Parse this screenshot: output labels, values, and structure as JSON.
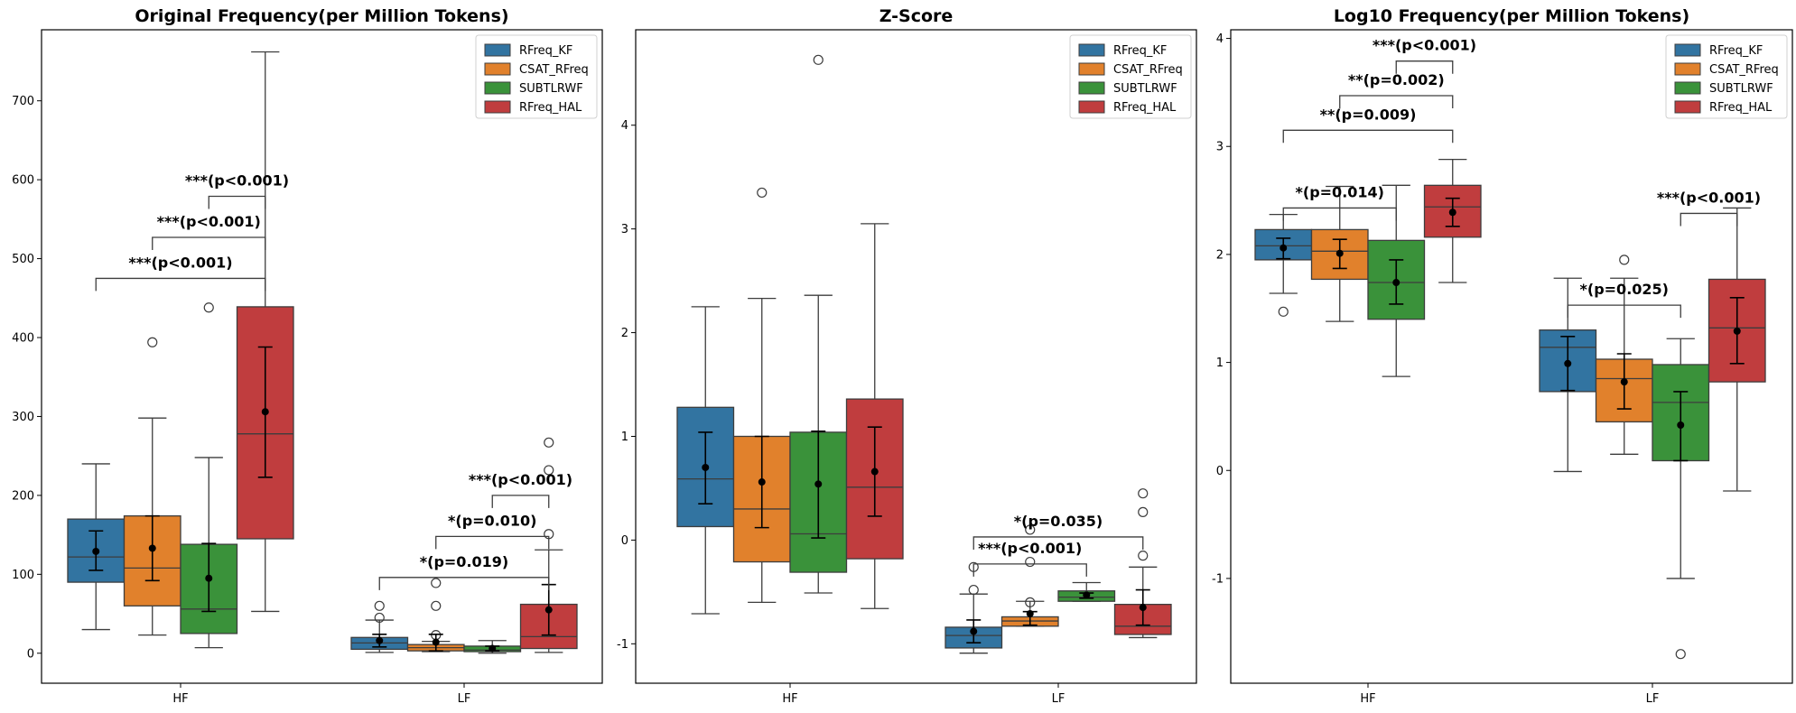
{
  "figure": {
    "colors": {
      "RFreq_KF": "#3274a1",
      "CSAT_RFreq": "#e1812c",
      "SUBTLRWF": "#3a923a",
      "RFreq_HAL": "#c03d3e"
    }
  },
  "chart_data": [
    {
      "type": "box",
      "title": "Original Frequency(per Million Tokens)",
      "xlabel": "",
      "ylabel": "",
      "categories": [
        "HF",
        "LF"
      ],
      "legend": {
        "entries": [
          "RFreq_KF",
          "CSAT_RFreq",
          "SUBTLRWF",
          "RFreq_HAL"
        ],
        "position": "top-right"
      },
      "ylim": [
        -38,
        790
      ],
      "yticks": [
        0,
        100,
        200,
        300,
        400,
        500,
        600,
        700
      ],
      "ytick_labels": [
        "0",
        "100",
        "200",
        "300",
        "400",
        "500",
        "600",
        "700"
      ],
      "grid": false,
      "series": [
        {
          "name": "RFreq_KF",
          "boxes": [
            {
              "category": "HF",
              "whislo": 30,
              "q1": 90,
              "med": 122,
              "q3": 170,
              "whishi": 240,
              "mean": 129,
              "ci": [
                105,
                155
              ],
              "fliers": []
            },
            {
              "category": "LF",
              "whislo": 1,
              "q1": 5,
              "med": 13,
              "q3": 20,
              "whishi": 42,
              "mean": 16,
              "ci": [
                8,
                24
              ],
              "fliers": [
                45,
                60
              ]
            }
          ]
        },
        {
          "name": "CSAT_RFreq",
          "boxes": [
            {
              "category": "HF",
              "whislo": 23,
              "q1": 60,
              "med": 108,
              "q3": 174,
              "whishi": 298,
              "mean": 133,
              "ci": [
                92,
                174
              ],
              "fliers": [
                394
              ]
            },
            {
              "category": "LF",
              "whislo": 2,
              "q1": 3,
              "med": 7,
              "q3": 11,
              "whishi": 15,
              "mean": 14,
              "ci": [
                3,
                24
              ],
              "fliers": [
                23,
                60,
                89
              ]
            }
          ]
        },
        {
          "name": "SUBTLRWF",
          "boxes": [
            {
              "category": "HF",
              "whislo": 7,
              "q1": 25,
              "med": 56,
              "q3": 138,
              "whishi": 248,
              "mean": 95,
              "ci": [
                53,
                139
              ],
              "fliers": [
                438
              ]
            },
            {
              "category": "LF",
              "whislo": 0,
              "q1": 2,
              "med": 4,
              "q3": 9,
              "whishi": 16,
              "mean": 6,
              "ci": [
                3,
                9
              ],
              "fliers": []
            }
          ]
        },
        {
          "name": "RFreq_HAL",
          "boxes": [
            {
              "category": "HF",
              "whislo": 53,
              "q1": 145,
              "med": 278,
              "q3": 439,
              "whishi": 762,
              "mean": 306,
              "ci": [
                223,
                388
              ],
              "fliers": []
            },
            {
              "category": "LF",
              "whislo": 1,
              "q1": 6,
              "med": 21,
              "q3": 62,
              "whishi": 131,
              "mean": 55,
              "ci": [
                23,
                87
              ],
              "fliers": [
                151,
                232,
                267
              ]
            }
          ]
        }
      ],
      "annotations": [
        {
          "text": "***(p<0.001)",
          "category": "HF",
          "from": "RFreq_KF",
          "to": "RFreq_HAL",
          "y": 475
        },
        {
          "text": "***(p<0.001)",
          "category": "HF",
          "from": "CSAT_RFreq",
          "to": "RFreq_HAL",
          "y": 527
        },
        {
          "text": "***(p<0.001)",
          "category": "HF",
          "from": "SUBTLRWF",
          "to": "RFreq_HAL",
          "y": 579
        },
        {
          "text": "*(p=0.019)",
          "category": "LF",
          "from": "RFreq_KF",
          "to": "RFreq_HAL",
          "y": 96
        },
        {
          "text": "*(p=0.010)",
          "category": "LF",
          "from": "CSAT_RFreq",
          "to": "RFreq_HAL",
          "y": 148
        },
        {
          "text": "***(p<0.001)",
          "category": "LF",
          "from": "SUBTLRWF",
          "to": "RFreq_HAL",
          "y": 200
        }
      ]
    },
    {
      "type": "box",
      "title": "Z-Score",
      "xlabel": "",
      "ylabel": "",
      "categories": [
        "HF",
        "LF"
      ],
      "legend": {
        "entries": [
          "RFreq_KF",
          "CSAT_RFreq",
          "SUBTLRWF",
          "RFreq_HAL"
        ],
        "position": "top-right"
      },
      "ylim": [
        -1.38,
        4.92
      ],
      "yticks": [
        -1,
        0,
        1,
        2,
        3,
        4
      ],
      "ytick_labels": [
        "-1",
        "0",
        "1",
        "2",
        "3",
        "4"
      ],
      "grid": false,
      "series": [
        {
          "name": "RFreq_KF",
          "boxes": [
            {
              "category": "HF",
              "whislo": -0.71,
              "q1": 0.13,
              "med": 0.59,
              "q3": 1.28,
              "whishi": 2.25,
              "mean": 0.7,
              "ci": [
                0.35,
                1.04
              ],
              "fliers": []
            },
            {
              "category": "LF",
              "whislo": -1.09,
              "q1": -1.04,
              "med": -0.92,
              "q3": -0.84,
              "whishi": -0.52,
              "mean": -0.88,
              "ci": [
                -0.99,
                -0.77
              ],
              "fliers": [
                -0.48,
                -0.26
              ]
            }
          ]
        },
        {
          "name": "CSAT_RFreq",
          "boxes": [
            {
              "category": "HF",
              "whislo": -0.6,
              "q1": -0.21,
              "med": 0.3,
              "q3": 1.0,
              "whishi": 2.33,
              "mean": 0.56,
              "ci": [
                0.12,
                1.0
              ],
              "fliers": [
                3.35
              ]
            },
            {
              "category": "LF",
              "whislo": -0.83,
              "q1": -0.83,
              "med": -0.78,
              "q3": -0.74,
              "whishi": -0.59,
              "mean": -0.71,
              "ci": [
                -0.82,
                -0.69
              ],
              "fliers": [
                -0.6,
                -0.21,
                0.1
              ]
            }
          ]
        },
        {
          "name": "SUBTLRWF",
          "boxes": [
            {
              "category": "HF",
              "whislo": -0.51,
              "q1": -0.31,
              "med": 0.06,
              "q3": 1.04,
              "whishi": 2.36,
              "mean": 0.54,
              "ci": [
                0.02,
                1.05
              ],
              "fliers": [
                4.63
              ]
            },
            {
              "category": "LF",
              "whislo": -0.59,
              "q1": -0.59,
              "med": -0.55,
              "q3": -0.49,
              "whishi": -0.41,
              "mean": -0.53,
              "ci": [
                -0.56,
                -0.51
              ],
              "fliers": []
            }
          ]
        },
        {
          "name": "RFreq_HAL",
          "boxes": [
            {
              "category": "HF",
              "whislo": -0.66,
              "q1": -0.18,
              "med": 0.51,
              "q3": 1.36,
              "whishi": 3.05,
              "mean": 0.66,
              "ci": [
                0.23,
                1.09
              ],
              "fliers": []
            },
            {
              "category": "LF",
              "whislo": -0.94,
              "q1": -0.91,
              "med": -0.83,
              "q3": -0.62,
              "whishi": -0.26,
              "mean": -0.65,
              "ci": [
                -0.82,
                -0.48
              ],
              "fliers": [
                -0.15,
                0.27,
                0.45
              ]
            }
          ]
        }
      ],
      "annotations": [
        {
          "text": "***(p<0.001)",
          "category": "LF",
          "from": "RFreq_KF",
          "to": "SUBTLRWF",
          "y": -0.23
        },
        {
          "text": "*(p=0.035)",
          "category": "LF",
          "from": "RFreq_KF",
          "to": "RFreq_HAL",
          "y": 0.03
        }
      ]
    },
    {
      "type": "box",
      "title": "Log10 Frequency(per Million Tokens)",
      "xlabel": "",
      "ylabel": "",
      "categories": [
        "HF",
        "LF"
      ],
      "legend": {
        "entries": [
          "RFreq_KF",
          "CSAT_RFreq",
          "SUBTLRWF",
          "RFreq_HAL"
        ],
        "position": "top-right"
      },
      "ylim": [
        -1.97,
        4.08
      ],
      "yticks": [
        -1,
        0,
        1,
        2,
        3,
        4
      ],
      "ytick_labels": [
        "-1",
        "0",
        "1",
        "2",
        "3",
        "4"
      ],
      "grid": false,
      "series": [
        {
          "name": "RFreq_KF",
          "boxes": [
            {
              "category": "HF",
              "whislo": 1.64,
              "q1": 1.95,
              "med": 2.08,
              "q3": 2.23,
              "whishi": 2.37,
              "mean": 2.06,
              "ci": [
                1.96,
                2.15
              ],
              "fliers": [
                1.47
              ]
            },
            {
              "category": "LF",
              "whislo": -0.01,
              "q1": 0.73,
              "med": 1.14,
              "q3": 1.3,
              "whishi": 1.78,
              "mean": 0.99,
              "ci": [
                0.74,
                1.24
              ],
              "fliers": []
            }
          ]
        },
        {
          "name": "CSAT_RFreq",
          "boxes": [
            {
              "category": "HF",
              "whislo": 1.38,
              "q1": 1.77,
              "med": 2.03,
              "q3": 2.23,
              "whishi": 2.63,
              "mean": 2.01,
              "ci": [
                1.87,
                2.14
              ],
              "fliers": []
            },
            {
              "category": "LF",
              "whislo": 0.15,
              "q1": 0.45,
              "med": 0.85,
              "q3": 1.03,
              "whishi": 1.78,
              "mean": 0.82,
              "ci": [
                0.57,
                1.08
              ],
              "fliers": [
                1.95
              ]
            }
          ]
        },
        {
          "name": "SUBTLRWF",
          "boxes": [
            {
              "category": "HF",
              "whislo": 0.87,
              "q1": 1.4,
              "med": 1.74,
              "q3": 2.13,
              "whishi": 2.64,
              "mean": 1.74,
              "ci": [
                1.54,
                1.95
              ],
              "fliers": []
            },
            {
              "category": "LF",
              "whislo": -1.0,
              "q1": 0.09,
              "med": 0.63,
              "q3": 0.98,
              "whishi": 1.22,
              "mean": 0.42,
              "ci": [
                0.09,
                0.73
              ],
              "fliers": [
                -1.7
              ]
            }
          ]
        },
        {
          "name": "RFreq_HAL",
          "boxes": [
            {
              "category": "HF",
              "whislo": 1.74,
              "q1": 2.16,
              "med": 2.44,
              "q3": 2.64,
              "whishi": 2.88,
              "mean": 2.39,
              "ci": [
                2.26,
                2.52
              ],
              "fliers": []
            },
            {
              "category": "LF",
              "whislo": -0.19,
              "q1": 0.82,
              "med": 1.32,
              "q3": 1.77,
              "whishi": 2.43,
              "mean": 1.29,
              "ci": [
                0.99,
                1.6
              ],
              "fliers": []
            }
          ]
        }
      ],
      "annotations": [
        {
          "text": "*(p=0.014)",
          "category": "HF",
          "from": "RFreq_KF",
          "to": "SUBTLRWF",
          "y": 2.43
        },
        {
          "text": "**(p=0.009)",
          "category": "HF",
          "from": "RFreq_KF",
          "to": "RFreq_HAL",
          "y": 3.15
        },
        {
          "text": "**(p=0.002)",
          "category": "HF",
          "from": "CSAT_RFreq",
          "to": "RFreq_HAL",
          "y": 3.47
        },
        {
          "text": "***(p<0.001)",
          "category": "HF",
          "from": "SUBTLRWF",
          "to": "RFreq_HAL",
          "y": 3.79
        },
        {
          "text": "*(p=0.025)",
          "category": "LF",
          "from": "RFreq_KF",
          "to": "SUBTLRWF",
          "y": 1.53
        },
        {
          "text": "***(p<0.001)",
          "category": "LF",
          "from": "SUBTLRWF",
          "to": "RFreq_HAL",
          "y": 2.38
        }
      ]
    }
  ]
}
